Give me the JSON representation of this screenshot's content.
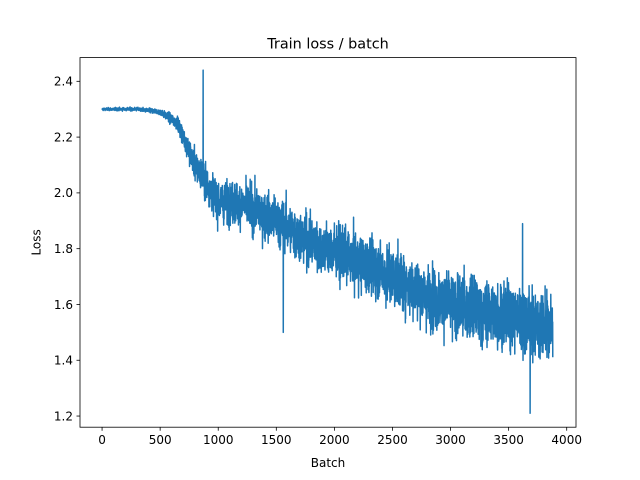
{
  "chart_data": {
    "type": "line",
    "title": "Train loss / batch",
    "xlabel": "Batch",
    "ylabel": "Loss",
    "xlim": [
      -190,
      4080
    ],
    "ylim": [
      1.16,
      2.485
    ],
    "x_ticks": [
      0,
      500,
      1000,
      1500,
      2000,
      2500,
      3000,
      3500,
      4000
    ],
    "x_tick_labels": [
      "0",
      "500",
      "1000",
      "1500",
      "2000",
      "2500",
      "3000",
      "3500",
      "4000"
    ],
    "y_ticks": [
      1.2,
      1.4,
      1.6,
      1.8,
      2.0,
      2.2,
      2.4
    ],
    "y_tick_labels": [
      "1.2",
      "1.4",
      "1.6",
      "1.8",
      "2.0",
      "2.2",
      "2.4"
    ],
    "grid": false,
    "legend": "none",
    "series": [
      {
        "color": "#1f77b4",
        "x_range": [
          0,
          3880
        ],
        "trend": {
          "x": [
            0,
            300,
            500,
            650,
            800,
            1000,
            1200,
            1500,
            1800,
            2100,
            2500,
            2900,
            3300,
            3600,
            3880
          ],
          "y": [
            2.3,
            2.3,
            2.29,
            2.25,
            2.1,
            1.97,
            1.96,
            1.9,
            1.82,
            1.77,
            1.7,
            1.61,
            1.57,
            1.55,
            1.51
          ]
        },
        "noise_band": {
          "x": [
            0,
            300,
            500,
            650,
            800,
            1000,
            1500,
            2000,
            2500,
            3000,
            3500,
            3880
          ],
          "half_width": [
            0.006,
            0.008,
            0.013,
            0.03,
            0.07,
            0.09,
            0.11,
            0.12,
            0.13,
            0.14,
            0.15,
            0.14
          ]
        },
        "notable_points": [
          {
            "x": 870,
            "y": 2.44
          },
          {
            "x": 1560,
            "y": 1.5
          },
          {
            "x": 3685,
            "y": 1.21
          },
          {
            "x": 3620,
            "y": 1.89
          }
        ]
      }
    ]
  }
}
